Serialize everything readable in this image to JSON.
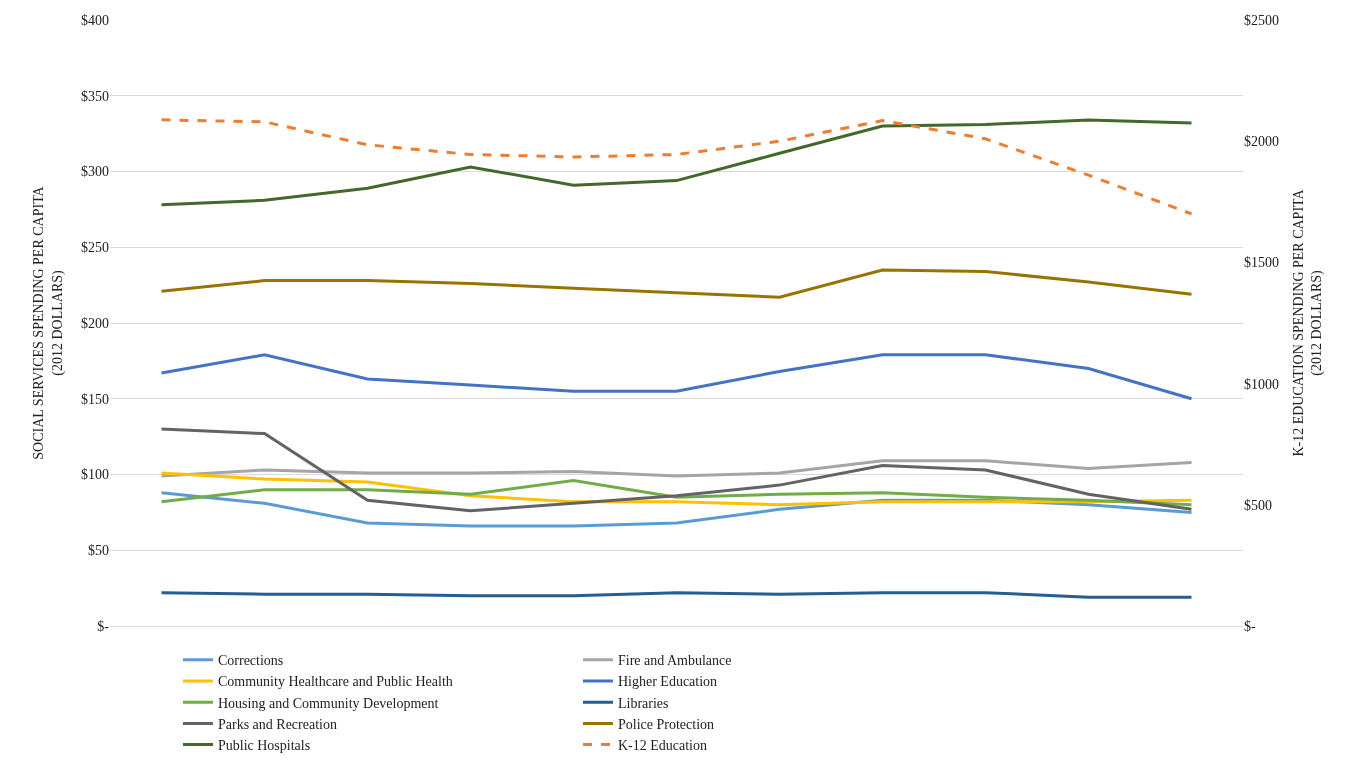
{
  "chart_data": {
    "type": "line",
    "ylabel": "SOCIAL SERVICES SPENDING PER CAPITA\n(2012 DOLLARS)",
    "y2label": "K-12 EDUCATION SPENDING PER CAPITA\n(2012 DOLLARS)",
    "categories": [
      null,
      null,
      null,
      null,
      null,
      null,
      null,
      null,
      null,
      null,
      null
    ],
    "ylim": [
      0,
      400
    ],
    "yticks": [
      {
        "value": 0,
        "label": "$-"
      },
      {
        "value": 50,
        "label": "$50"
      },
      {
        "value": 100,
        "label": "$100"
      },
      {
        "value": 150,
        "label": "$150"
      },
      {
        "value": 200,
        "label": "$200"
      },
      {
        "value": 250,
        "label": "$250"
      },
      {
        "value": 300,
        "label": "$300"
      },
      {
        "value": 350,
        "label": "$350"
      },
      {
        "value": 400,
        "label": "$400"
      }
    ],
    "y2lim": [
      0,
      2500
    ],
    "y2ticks": [
      {
        "value": 0,
        "label": "$-"
      },
      {
        "value": 500,
        "label": "$500"
      },
      {
        "value": 1000,
        "label": "$1000"
      },
      {
        "value": 1500,
        "label": "$1500"
      },
      {
        "value": 2000,
        "label": "$2000"
      },
      {
        "value": 2500,
        "label": "$2500"
      }
    ],
    "grid": "y",
    "legend": "bottom",
    "marker": "none",
    "series": [
      {
        "name": "Corrections",
        "color": "#5b9bd5",
        "values": [
          88,
          81,
          68,
          66,
          66,
          68,
          77,
          83,
          83,
          80,
          75
        ]
      },
      {
        "name": "Fire and Ambulance",
        "color": "#a5a5a5",
        "values": [
          99,
          103,
          101,
          101,
          102,
          99,
          101,
          109,
          109,
          104,
          108
        ]
      },
      {
        "name": "Community Healthcare and Public Health",
        "color": "#ffc000",
        "values": [
          101,
          97,
          95,
          86,
          82,
          82,
          80,
          82,
          82,
          82,
          83
        ]
      },
      {
        "name": "Higher Education",
        "color": "#4472c4",
        "values": [
          167,
          179,
          163,
          159,
          155,
          155,
          168,
          179,
          179,
          170,
          150
        ]
      },
      {
        "name": "Housing and Community Development",
        "color": "#70ad47",
        "values": [
          82,
          90,
          90,
          87,
          96,
          85,
          87,
          88,
          85,
          83,
          80
        ]
      },
      {
        "name": "Libraries",
        "color": "#255e91",
        "values": [
          22,
          21,
          21,
          20,
          20,
          22,
          21,
          22,
          22,
          19,
          19
        ]
      },
      {
        "name": "Parks and Recreation",
        "color": "#636363",
        "values": [
          130,
          127,
          83,
          76,
          81,
          86,
          93,
          106,
          103,
          87,
          77
        ]
      },
      {
        "name": "Police Protection",
        "color": "#997300",
        "values": [
          221,
          228,
          228,
          226,
          223,
          220,
          217,
          235,
          234,
          227,
          219
        ]
      },
      {
        "name": "Public Hospitals",
        "color": "#43682b",
        "values": [
          278,
          281,
          289,
          303,
          291,
          294,
          312,
          330,
          331,
          334,
          332
        ]
      },
      {
        "name": "K-12 Education",
        "color": "#ed7d31",
        "axis": "y2",
        "line_style": "dashed",
        "values": [
          2088,
          2080,
          1985,
          1945,
          1935,
          1945,
          2000,
          2085,
          2010,
          1860,
          1700
        ]
      }
    ]
  }
}
